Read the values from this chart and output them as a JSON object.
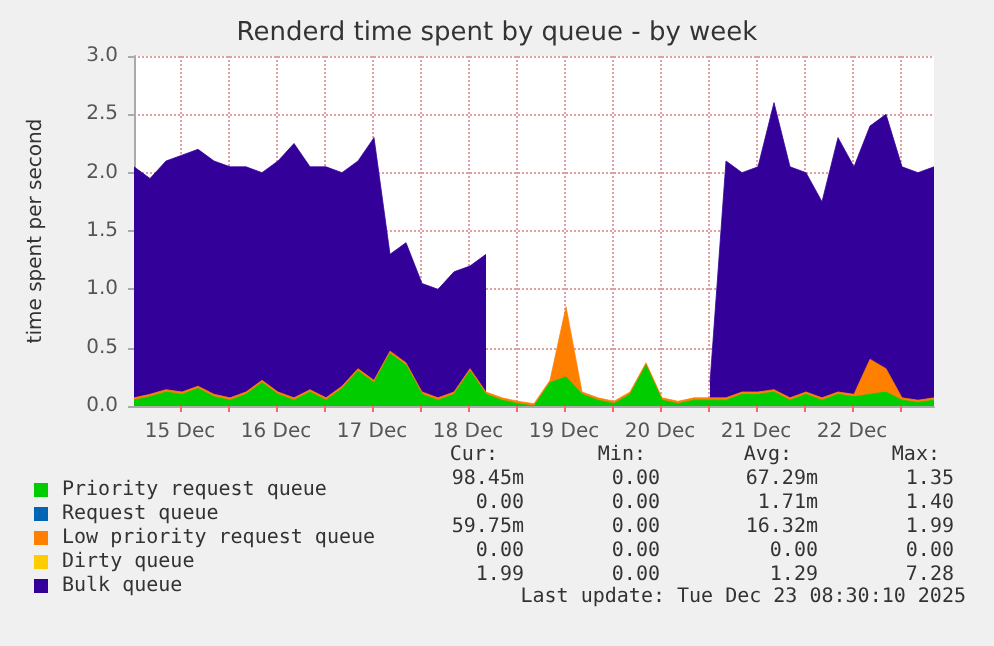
{
  "chart_data": {
    "type": "area",
    "stacked": true,
    "title": "Renderd time spent by queue - by week",
    "ylabel": "time spent per second",
    "x": [
      "2025-12-15T00:30",
      "2025-12-15T04:30",
      "2025-12-15T08:30",
      "2025-12-15T12:30",
      "2025-12-15T16:30",
      "2025-12-15T20:30",
      "2025-12-16T00:30",
      "2025-12-16T04:30",
      "2025-12-16T08:30",
      "2025-12-16T12:30",
      "2025-12-16T16:30",
      "2025-12-16T20:30",
      "2025-12-17T00:30",
      "2025-12-17T04:30",
      "2025-12-17T08:30",
      "2025-12-17T12:30",
      "2025-12-17T16:30",
      "2025-12-17T20:30",
      "2025-12-18T00:30",
      "2025-12-18T04:30",
      "2025-12-18T08:30",
      "2025-12-18T12:30",
      "2025-12-18T16:30",
      "2025-12-18T20:30",
      "2025-12-19T00:30",
      "2025-12-19T04:30",
      "2025-12-19T08:30",
      "2025-12-19T12:30",
      "2025-12-19T16:30",
      "2025-12-19T20:30",
      "2025-12-20T00:30",
      "2025-12-20T04:30",
      "2025-12-20T08:30",
      "2025-12-20T12:30",
      "2025-12-20T16:30",
      "2025-12-20T20:30",
      "2025-12-21T00:30",
      "2025-12-21T04:30",
      "2025-12-21T08:30",
      "2025-12-21T12:30",
      "2025-12-21T16:30",
      "2025-12-21T20:30",
      "2025-12-22T00:30",
      "2025-12-22T04:30",
      "2025-12-22T08:30",
      "2025-12-22T12:30",
      "2025-12-22T16:30",
      "2025-12-22T20:30",
      "2025-12-23T00:30",
      "2025-12-23T04:30",
      "2025-12-23T08:30"
    ],
    "series": [
      {
        "name": "Priority request queue",
        "color": "#00cc00",
        "values": [
          0.05,
          0.08,
          0.12,
          0.1,
          0.15,
          0.08,
          0.05,
          0.1,
          0.2,
          0.1,
          0.05,
          0.12,
          0.05,
          0.15,
          0.3,
          0.2,
          0.45,
          0.35,
          0.1,
          0.05,
          0.1,
          0.3,
          0.1,
          0.05,
          0.02,
          0,
          0.2,
          0.25,
          0.1,
          0.05,
          0.02,
          0.1,
          0.35,
          0.05,
          0.02,
          0.05,
          0.05,
          0.05,
          0.1,
          0.1,
          0.12,
          0.05,
          0.1,
          0.05,
          0.1,
          0.08,
          0.1,
          0.12,
          0.05,
          0.03,
          0.05
        ]
      },
      {
        "name": "Request queue",
        "color": "#0066b3",
        "values": [
          null,
          null,
          null,
          null,
          null,
          null,
          null,
          null,
          null,
          null,
          null,
          null,
          null,
          null,
          null,
          null,
          null,
          null,
          null,
          null,
          null,
          null,
          null,
          null,
          null,
          null,
          null,
          null,
          null,
          null,
          null,
          null,
          null,
          null,
          null,
          null,
          null,
          null,
          null,
          null,
          null,
          null,
          null,
          null,
          null,
          null,
          null,
          null,
          null,
          null,
          null
        ]
      },
      {
        "name": "Low priority request queue",
        "color": "#ff8000",
        "values": [
          0.02,
          0.02,
          0.02,
          0.02,
          0.02,
          0.02,
          0.02,
          0.02,
          0.02,
          0.02,
          0.02,
          0.02,
          0.02,
          0.02,
          0.02,
          0.02,
          0.02,
          0.02,
          0.02,
          0.02,
          0.02,
          0.02,
          0.02,
          0.02,
          0.02,
          0.02,
          0.02,
          0.6,
          0.02,
          0.02,
          0.02,
          0.02,
          0.02,
          0.02,
          0.02,
          0.02,
          0.02,
          0.02,
          0.02,
          0.02,
          0.02,
          0.02,
          0.02,
          0.02,
          0.02,
          0.02,
          0.3,
          0.2,
          0.02,
          0.02,
          0.02
        ]
      },
      {
        "name": "Dirty queue",
        "color": "#ffcc00",
        "values": [
          null,
          null,
          null,
          null,
          null,
          null,
          null,
          null,
          null,
          null,
          null,
          null,
          null,
          null,
          null,
          null,
          null,
          null,
          null,
          null,
          null,
          null,
          null,
          null,
          null,
          null,
          null,
          null,
          null,
          null,
          null,
          null,
          null,
          null,
          null,
          null,
          null,
          null,
          null,
          null,
          null,
          null,
          null,
          null,
          null,
          null,
          null,
          null,
          null,
          null,
          null
        ]
      },
      {
        "name": "Bulk queue",
        "color": "#330099",
        "values": [
          1.98,
          1.85,
          1.96,
          2.03,
          2.03,
          2.0,
          1.98,
          1.93,
          1.78,
          1.98,
          2.18,
          1.91,
          1.98,
          1.83,
          1.78,
          2.08,
          0.83,
          1.03,
          0.93,
          0.93,
          1.03,
          0.88,
          1.18,
          null,
          null,
          null,
          null,
          null,
          null,
          null,
          null,
          null,
          null,
          null,
          null,
          null,
          0.13,
          2.03,
          1.88,
          1.93,
          2.46,
          1.98,
          1.88,
          1.68,
          2.18,
          1.95,
          2.0,
          2.18,
          1.98,
          1.95,
          1.98
        ]
      }
    ],
    "xlim": [
      "2025-12-15T00:30",
      "2025-12-23T08:30"
    ],
    "xticks": [
      {
        "value": "2025-12-15T12:00",
        "label": "15 Dec"
      },
      {
        "value": "2025-12-16T00:00",
        "label": null
      },
      {
        "value": "2025-12-16T12:00",
        "label": "16 Dec"
      },
      {
        "value": "2025-12-17T00:00",
        "label": null
      },
      {
        "value": "2025-12-17T12:00",
        "label": "17 Dec"
      },
      {
        "value": "2025-12-18T00:00",
        "label": null
      },
      {
        "value": "2025-12-18T12:00",
        "label": "18 Dec"
      },
      {
        "value": "2025-12-19T00:00",
        "label": null
      },
      {
        "value": "2025-12-19T12:00",
        "label": "19 Dec"
      },
      {
        "value": "2025-12-20T00:00",
        "label": null
      },
      {
        "value": "2025-12-20T12:00",
        "label": "20 Dec"
      },
      {
        "value": "2025-12-21T00:00",
        "label": null
      },
      {
        "value": "2025-12-21T12:00",
        "label": "21 Dec"
      },
      {
        "value": "2025-12-22T00:00",
        "label": null
      },
      {
        "value": "2025-12-22T12:00",
        "label": "22 Dec"
      },
      {
        "value": "2025-12-23T00:00",
        "label": null
      }
    ],
    "ylim": [
      0,
      3
    ],
    "yticks": [
      {
        "value": 0,
        "label": "0.0"
      },
      {
        "value": 0.5,
        "label": "0.5"
      },
      {
        "value": 1,
        "label": "1.0"
      },
      {
        "value": 1.5,
        "label": "1.5"
      },
      {
        "value": 2,
        "label": "2.0"
      },
      {
        "value": 2.5,
        "label": "2.5"
      },
      {
        "value": 3,
        "label": "3.0"
      }
    ],
    "grid": true,
    "legend": "bottom",
    "marker": "none",
    "annotations": [
      "Cur:",
      "Min:",
      "Avg:",
      "Max:",
      "98.45m",
      "0.00",
      "67.29m",
      "1.35",
      "0.00",
      "0.00",
      "1.71m",
      "1.40",
      "59.75m",
      "0.00",
      "16.32m",
      "1.99",
      "0.00",
      "0.00",
      "0.00",
      "0.00",
      "1.99",
      "0.00",
      "1.29",
      "7.28",
      "Last update: Tue Dec 23 08:30:10 2025"
    ]
  }
}
